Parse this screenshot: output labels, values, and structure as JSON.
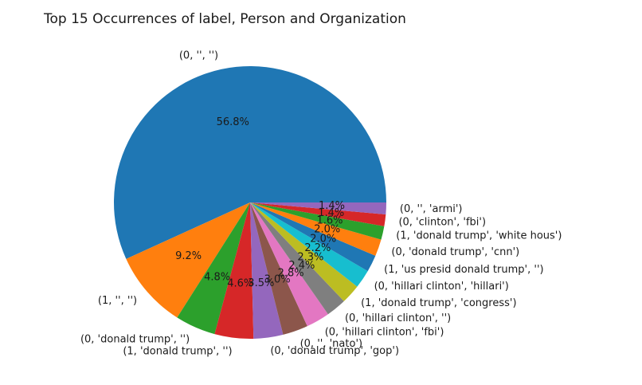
{
  "chart_data": {
    "type": "pie",
    "title": "Top 15 Occurrences of label, Person and Organization",
    "categories": [
      "(0, '', '')",
      "(1, '', '')",
      "(0, 'donald trump', '')",
      "(1, 'donald trump', '')",
      "(0, 'donald trump', 'gop')",
      "(0, '', 'nato')",
      "(0, 'hillari clinton', 'fbi')",
      "(0, 'hillari clinton', '')",
      "(1, 'donald trump', 'congress')",
      "(0, 'hillari clinton', 'hillari')",
      "(1, 'us presid donald trump', '')",
      "(0, 'donald trump', 'cnn')",
      "(1, 'donald trump', 'white hous')",
      "(0, 'clinton', 'fbi')",
      "(0, '', 'armi')"
    ],
    "values": [
      56.8,
      9.2,
      4.8,
      4.6,
      3.5,
      3.0,
      2.8,
      2.4,
      2.3,
      2.2,
      2.0,
      2.0,
      1.6,
      1.4,
      1.4
    ],
    "percent_labels": [
      "56.8%",
      "9.2%",
      "4.8%",
      "4.6%",
      "3.5%",
      "3.0%",
      "2.8%",
      "2.4%",
      "2.3%",
      "2.2%",
      "2.0%",
      "2.0%",
      "1.6%",
      "1.4%",
      "1.4%"
    ],
    "colors": [
      "#1f77b4",
      "#ff7f0e",
      "#2ca02c",
      "#d62728",
      "#9467bd",
      "#8c564b",
      "#e377c2",
      "#7f7f7f",
      "#bcbd22",
      "#17becf",
      "#1f77b4",
      "#ff7f0e",
      "#2ca02c",
      "#d62728",
      "#9467bd"
    ],
    "start_angle": 0,
    "direction": "counterclockwise",
    "legend": "none"
  }
}
